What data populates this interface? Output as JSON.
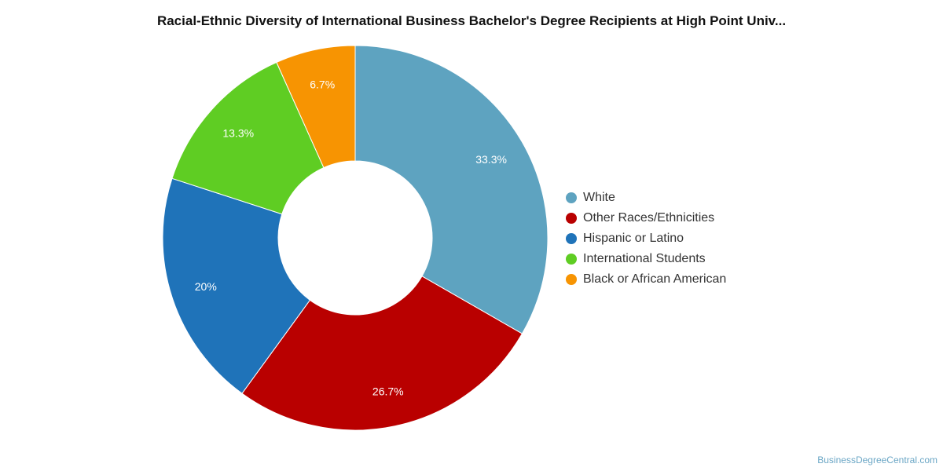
{
  "chart_data": {
    "type": "pie",
    "variant": "donut",
    "title": "Racial-Ethnic Diversity of International Business Bachelor's Degree Recipients at High Point Univ...",
    "slices": [
      {
        "name": "White",
        "value": 33.3,
        "label": "33.3%",
        "color": "#5ea3c0"
      },
      {
        "name": "Other Races/Ethnicities",
        "value": 26.7,
        "label": "26.7%",
        "color": "#b90000"
      },
      {
        "name": "Hispanic or Latino",
        "value": 20,
        "label": "20%",
        "color": "#1f73b9"
      },
      {
        "name": "International Students",
        "value": 13.3,
        "label": "13.3%",
        "color": "#5fcd23"
      },
      {
        "name": "Black or African American",
        "value": 6.7,
        "label": "6.7%",
        "color": "#f79402"
      }
    ],
    "legend_position": "right"
  },
  "watermark": "BusinessDegreeCentral.com"
}
